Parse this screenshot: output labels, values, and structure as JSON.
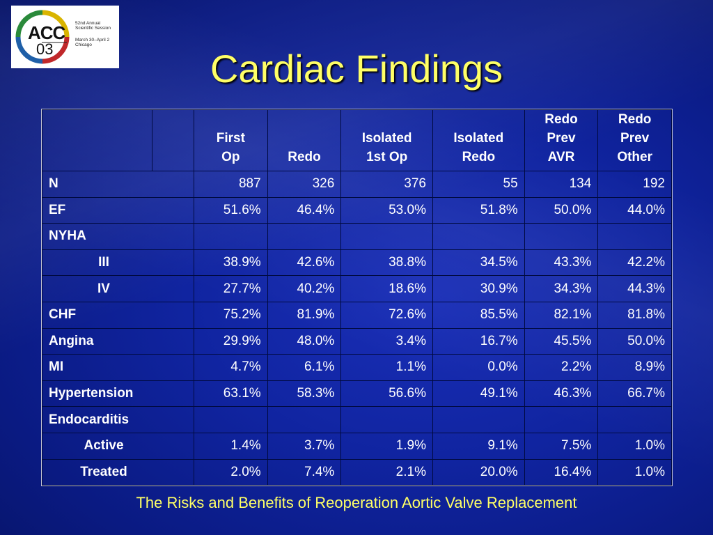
{
  "logo": {
    "acc": "ACC",
    "year": "03",
    "lines": [
      "52nd Annual",
      "Scientific Session",
      "March 30–April 2",
      "Chicago"
    ]
  },
  "title": "Cardiac Findings",
  "table": {
    "headers": [
      "First Op",
      "Redo",
      "Isolated 1st Op",
      "Isolated Redo",
      "Redo Prev AVR",
      "Redo Prev Other"
    ],
    "header_lines": [
      [
        "First",
        "Op"
      ],
      [
        "Redo"
      ],
      [
        "Isolated",
        "1st Op"
      ],
      [
        "Isolated",
        "Redo"
      ],
      [
        "Redo",
        "Prev",
        "AVR"
      ],
      [
        "Redo",
        "Prev",
        "Other"
      ]
    ],
    "rows": [
      {
        "label": "N",
        "indent": 0,
        "values": [
          "887",
          "326",
          "376",
          "55",
          "134",
          "192"
        ]
      },
      {
        "label": "EF",
        "indent": 0,
        "values": [
          "51.6%",
          "46.4%",
          "53.0%",
          "51.8%",
          "50.0%",
          "44.0%"
        ]
      },
      {
        "label": "NYHA",
        "indent": 0,
        "values": [
          "",
          "",
          "",
          "",
          "",
          ""
        ]
      },
      {
        "label": "III",
        "indent": 1,
        "values": [
          "38.9%",
          "42.6%",
          "38.8%",
          "34.5%",
          "43.3%",
          "42.2%"
        ]
      },
      {
        "label": "IV",
        "indent": 1,
        "values": [
          "27.7%",
          "40.2%",
          "18.6%",
          "30.9%",
          "34.3%",
          "44.3%"
        ]
      },
      {
        "label": "CHF",
        "indent": 0,
        "values": [
          "75.2%",
          "81.9%",
          "72.6%",
          "85.5%",
          "82.1%",
          "81.8%"
        ]
      },
      {
        "label": "Angina",
        "indent": 0,
        "values": [
          "29.9%",
          "48.0%",
          "3.4%",
          "16.7%",
          "45.5%",
          "50.0%"
        ]
      },
      {
        "label": "MI",
        "indent": 0,
        "values": [
          "4.7%",
          "6.1%",
          "1.1%",
          "0.0%",
          "2.2%",
          "8.9%"
        ]
      },
      {
        "label": "Hypertension",
        "indent": 0,
        "values": [
          "63.1%",
          "58.3%",
          "56.6%",
          "49.1%",
          "46.3%",
          "66.7%"
        ]
      },
      {
        "label": "Endocarditis",
        "indent": 0,
        "values": [
          "",
          "",
          "",
          "",
          "",
          ""
        ]
      },
      {
        "label": "Active",
        "indent": 1,
        "values": [
          "1.4%",
          "3.7%",
          "1.9%",
          "9.1%",
          "7.5%",
          "1.0%"
        ]
      },
      {
        "label": "Treated",
        "indent": 1,
        "values": [
          "2.0%",
          "7.4%",
          "2.1%",
          "20.0%",
          "16.4%",
          "1.0%"
        ]
      }
    ]
  },
  "caption": "The Risks and Benefits of Reoperation Aortic Valve Replacement",
  "colors": {
    "background": "#0f23a0",
    "title": "#ffff66",
    "text": "#ffffff"
  }
}
